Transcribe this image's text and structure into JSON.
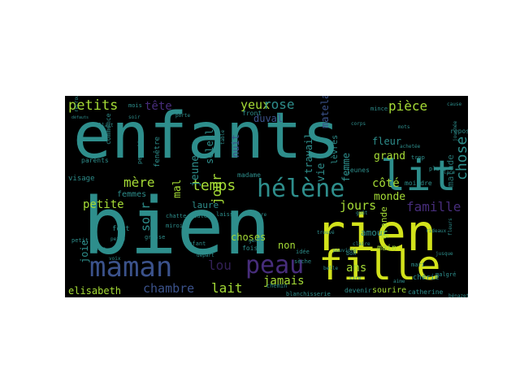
{
  "palette": {
    "background": "#000000",
    "canvas": "#ffffff",
    "yellow": "#d2e21b",
    "lime": "#a5db36",
    "green": "#5ec962",
    "teal": "#2e8e8c",
    "blue": "#3b528b",
    "cyan": "#29788e",
    "purple": "#472d7b",
    "indigo": "#443a83",
    "dark": "#31466f"
  },
  "words": [
    {
      "id": "enfants",
      "text": "enfants",
      "color": "teal"
    },
    {
      "id": "bien",
      "text": "bien",
      "color": "teal"
    },
    {
      "id": "rien",
      "text": "rien",
      "color": "yellow"
    },
    {
      "id": "fille",
      "text": "fille",
      "color": "yellow"
    },
    {
      "id": "lit",
      "text": "lit",
      "color": "teal"
    },
    {
      "id": "maman",
      "text": "maman",
      "color": "blue"
    },
    {
      "id": "peau",
      "text": "peau",
      "color": "purple"
    },
    {
      "id": "helene",
      "text": "hélène",
      "color": "teal"
    },
    {
      "id": "petits",
      "text": "petits",
      "color": "lime"
    },
    {
      "id": "tete",
      "text": "tête",
      "color": "purple"
    },
    {
      "id": "yeux",
      "text": "yeux",
      "color": "lime"
    },
    {
      "id": "rose",
      "text": "rose",
      "color": "teal"
    },
    {
      "id": "piece",
      "text": "pièce",
      "color": "lime"
    },
    {
      "id": "chose",
      "text": "chose",
      "color": "teal"
    },
    {
      "id": "temps",
      "text": "temps",
      "color": "lime"
    },
    {
      "id": "mere",
      "text": "mère",
      "color": "lime"
    },
    {
      "id": "soir",
      "text": "soir",
      "color": "teal"
    },
    {
      "id": "petite",
      "text": "petite",
      "color": "lime"
    },
    {
      "id": "jour",
      "text": "jour",
      "color": "lime"
    },
    {
      "id": "nuit",
      "text": "nuit",
      "color": "blue"
    },
    {
      "id": "jeune",
      "text": "jeune",
      "color": "teal"
    },
    {
      "id": "soleil",
      "text": "soleil",
      "color": "teal"
    },
    {
      "id": "mal",
      "text": "mal",
      "color": "lime"
    },
    {
      "id": "jours",
      "text": "jours",
      "color": "lime"
    },
    {
      "id": "famille",
      "text": "famille",
      "color": "purple"
    },
    {
      "id": "cote",
      "text": "côté",
      "color": "lime"
    },
    {
      "id": "monde",
      "text": "monde",
      "color": "lime"
    },
    {
      "id": "grand",
      "text": "grand",
      "color": "lime"
    },
    {
      "id": "fleur",
      "text": "fleur",
      "color": "teal"
    },
    {
      "id": "femme",
      "text": "femme",
      "color": "teal"
    },
    {
      "id": "vie",
      "text": "vie",
      "color": "teal"
    },
    {
      "id": "travail",
      "text": "travail",
      "color": "teal"
    },
    {
      "id": "matelas",
      "text": "matelas",
      "color": "blue"
    },
    {
      "id": "duval",
      "text": "duval",
      "color": "blue"
    },
    {
      "id": "chambre",
      "text": "chambre",
      "color": "blue"
    },
    {
      "id": "lait",
      "text": "lait",
      "color": "lime"
    },
    {
      "id": "jamais",
      "text": "jamais",
      "color": "lime"
    },
    {
      "id": "non",
      "text": "non",
      "color": "lime"
    },
    {
      "id": "choses",
      "text": "choses",
      "color": "lime"
    },
    {
      "id": "elisabeth",
      "text": "elisabeth",
      "color": "lime"
    },
    {
      "id": "lou",
      "text": "lou",
      "color": "purple"
    },
    {
      "id": "laure",
      "text": "laure",
      "color": "teal"
    },
    {
      "id": "femmes",
      "text": "femmes",
      "color": "teal"
    },
    {
      "id": "amour",
      "text": "amour",
      "color": "teal"
    },
    {
      "id": "main",
      "text": "main",
      "color": "lime"
    },
    {
      "id": "ans",
      "text": "ans",
      "color": "lime"
    },
    {
      "id": "grande",
      "text": "grande",
      "color": "lime"
    },
    {
      "id": "joie",
      "text": "joie",
      "color": "teal"
    },
    {
      "id": "levres",
      "text": "lèvres",
      "color": "teal"
    },
    {
      "id": "malade",
      "text": "malade",
      "color": "teal"
    },
    {
      "id": "sourire",
      "text": "sourire",
      "color": "lime"
    },
    {
      "id": "visage",
      "text": "visage",
      "color": "teal"
    },
    {
      "id": "fenetre",
      "text": "fenêtre",
      "color": "teal"
    },
    {
      "id": "commence",
      "text": "commence",
      "color": "teal"
    },
    {
      "id": "parents",
      "text": "parents",
      "color": "teal"
    },
    {
      "id": "fort",
      "text": "fort",
      "color": "teal"
    },
    {
      "id": "fois",
      "text": "fois",
      "color": "teal"
    },
    {
      "id": "madame",
      "text": "madame",
      "color": "teal"
    },
    {
      "id": "front",
      "text": "front",
      "color": "teal"
    },
    {
      "id": "mois",
      "text": "mois",
      "color": "teal"
    },
    {
      "id": "repos",
      "text": "repos",
      "color": "teal"
    },
    {
      "id": "moindre",
      "text": "moindre",
      "color": "teal"
    },
    {
      "id": "jeunes",
      "text": "jeunes",
      "color": "teal"
    },
    {
      "id": "place",
      "text": "place",
      "color": "teal"
    },
    {
      "id": "cherie",
      "text": "chérie",
      "color": "teal"
    },
    {
      "id": "catherine",
      "text": "catherine",
      "color": "teal"
    },
    {
      "id": "devenir",
      "text": "devenir",
      "color": "teal"
    },
    {
      "id": "blanchisserie",
      "text": "blanchisserie",
      "color": "teal"
    },
    {
      "id": "chemin",
      "text": "chemin",
      "color": "teal"
    },
    {
      "id": "enfant",
      "text": "enfant",
      "color": "teal"
    },
    {
      "id": "grasse",
      "text": "grasse",
      "color": "teal"
    },
    {
      "id": "miroir",
      "text": "miroir",
      "color": "teal"
    },
    {
      "id": "laisse",
      "text": "laisse",
      "color": "teal"
    },
    {
      "id": "douleur",
      "text": "douleur",
      "color": "teal"
    },
    {
      "id": "chatte",
      "text": "chatte",
      "color": "teal"
    },
    {
      "id": "perrette",
      "text": "perrette",
      "color": "teal"
    },
    {
      "id": "petit",
      "text": "petit",
      "color": "teal"
    },
    {
      "id": "peine",
      "text": "peine",
      "color": "teal"
    },
    {
      "id": "homme",
      "text": "homme",
      "color": "teal"
    },
    {
      "id": "voix",
      "text": "voix",
      "color": "teal"
    },
    {
      "id": "soir2",
      "text": "soir",
      "color": "teal"
    },
    {
      "id": "allait",
      "text": "allait",
      "color": "teal"
    },
    {
      "id": "retrouver",
      "text": "retrouver",
      "color": "teal"
    },
    {
      "id": "defauts",
      "text": "défauts",
      "color": "teal"
    },
    {
      "id": "table",
      "text": "table",
      "color": "teal"
    },
    {
      "id": "idee",
      "text": "idée",
      "color": "teal"
    },
    {
      "id": "seche",
      "text": "sèche",
      "color": "teal"
    },
    {
      "id": "pouvions",
      "text": "pouvions",
      "color": "teal"
    },
    {
      "id": "bon",
      "text": "bon",
      "color": "teal"
    },
    {
      "id": "mince",
      "text": "mince",
      "color": "teal"
    },
    {
      "id": "trop",
      "text": "trop",
      "color": "teal"
    },
    {
      "id": "malgre",
      "text": "malgré",
      "color": "teal"
    },
    {
      "id": "mari",
      "text": "mari",
      "color": "teal"
    },
    {
      "id": "benazet",
      "text": "bénazet",
      "color": "teal"
    },
    {
      "id": "journee",
      "text": "journée",
      "color": "teal"
    },
    {
      "id": "cire",
      "text": "cire",
      "color": "teal"
    },
    {
      "id": "claire",
      "text": "claire",
      "color": "teal"
    },
    {
      "id": "cause",
      "text": "cause",
      "color": "teal"
    },
    {
      "id": "heure",
      "text": "heure",
      "color": "teal"
    },
    {
      "id": "depart",
      "text": "départ",
      "color": "teal"
    },
    {
      "id": "gens",
      "text": "gens",
      "color": "teal"
    },
    {
      "id": "belle",
      "text": "belle",
      "color": "teal"
    },
    {
      "id": "aime",
      "text": "aime",
      "color": "teal"
    },
    {
      "id": "place2",
      "text": "place",
      "color": "teal"
    },
    {
      "id": "achetee",
      "text": "achetée",
      "color": "teal"
    },
    {
      "id": "mots",
      "text": "mots",
      "color": "teal"
    },
    {
      "id": "rideaux",
      "text": "rideaux",
      "color": "teal"
    },
    {
      "id": "jusque",
      "text": "jusque",
      "color": "teal"
    },
    {
      "id": "corps",
      "text": "corps",
      "color": "teal"
    },
    {
      "id": "gout",
      "text": "goût",
      "color": "teal"
    },
    {
      "id": "trouve",
      "text": "trouvé",
      "color": "teal"
    },
    {
      "id": "porte",
      "text": "porte",
      "color": "teal"
    },
    {
      "id": "fleurs",
      "text": "fleurs",
      "color": "teal"
    }
  ]
}
